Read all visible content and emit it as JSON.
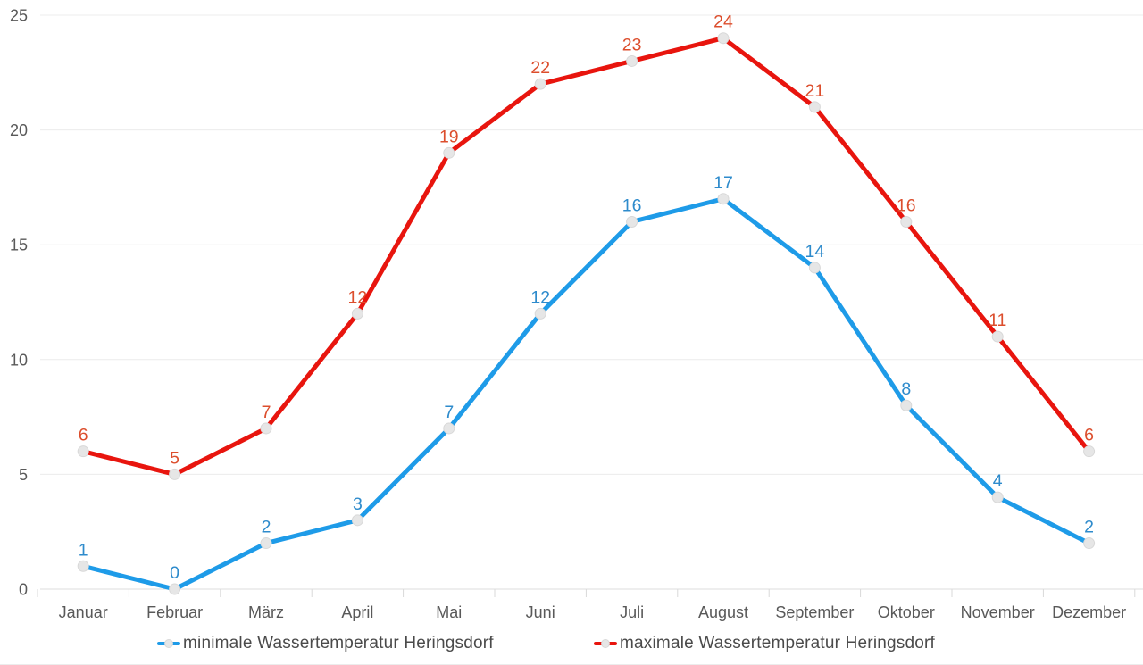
{
  "chart_data": {
    "type": "line",
    "title": "",
    "categories": [
      "Januar",
      "Februar",
      "März",
      "April",
      "Mai",
      "Juni",
      "Juli",
      "August",
      "September",
      "Oktober",
      "November",
      "Dezember"
    ],
    "series": [
      {
        "name": "minimale Wassertemperatur Heringsdorf",
        "values": [
          1,
          0,
          2,
          3,
          7,
          12,
          16,
          17,
          14,
          8,
          4,
          2
        ],
        "line_color": "#1E9BE8",
        "label_color": "#2E8BCC"
      },
      {
        "name": "maximale Wassertemperatur Heringsdorf",
        "values": [
          6,
          5,
          7,
          12,
          19,
          22,
          23,
          24,
          21,
          16,
          11,
          6
        ],
        "line_color": "#E8150E",
        "label_color": "#DC4E2D"
      }
    ],
    "ylim": [
      0,
      25
    ],
    "yticks": [
      0,
      5,
      10,
      15,
      20,
      25
    ],
    "grid": "horizontal",
    "legend_position": "bottom",
    "show_data_labels": true,
    "marker": {
      "shape": "circle",
      "fill": "#E6E6E6",
      "stroke": "#D8D8D8"
    },
    "axis": {
      "text_color": "#595959",
      "gridline_color": "#ECECEC",
      "axis_line_color": "#DEDEDE",
      "tick_color": "#D9D9D9"
    },
    "legend_text_color": "#4A4A4A",
    "background": "#FFFFFF"
  }
}
